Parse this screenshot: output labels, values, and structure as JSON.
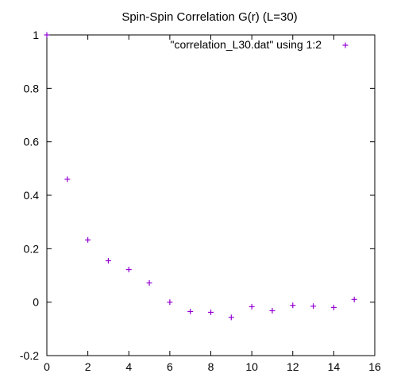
{
  "chart_data": {
    "type": "scatter",
    "title": "Spin-Spin Correlation G(r) (L=30)",
    "xlabel": "",
    "ylabel": "",
    "xlim": [
      0,
      16
    ],
    "ylim": [
      -0.2,
      1.0
    ],
    "x_ticks": [
      0,
      2,
      4,
      6,
      8,
      10,
      12,
      14,
      16
    ],
    "x_tick_labels": [
      "0",
      "2",
      "4",
      "6",
      "8",
      "10",
      "12",
      "14",
      "16"
    ],
    "y_ticks": [
      -0.2,
      0,
      0.2,
      0.4,
      0.6,
      0.8,
      1.0
    ],
    "y_tick_labels": [
      "-0.2",
      "0",
      "0.2",
      "0.4",
      "0.6",
      "0.8",
      "1"
    ],
    "grid": false,
    "legend_position": "top-right",
    "series": [
      {
        "name": "\"correlation_L30.dat\" using 1:2",
        "color": "#9400d3",
        "marker": "plus",
        "x": [
          0,
          1,
          2,
          3,
          4,
          5,
          6,
          7,
          8,
          9,
          10,
          11,
          12,
          13,
          14,
          15
        ],
        "y": [
          1.0,
          0.46,
          0.233,
          0.155,
          0.122,
          0.072,
          0.0,
          -0.035,
          -0.038,
          -0.057,
          -0.017,
          -0.032,
          -0.012,
          -0.015,
          -0.02,
          0.01
        ]
      }
    ]
  }
}
